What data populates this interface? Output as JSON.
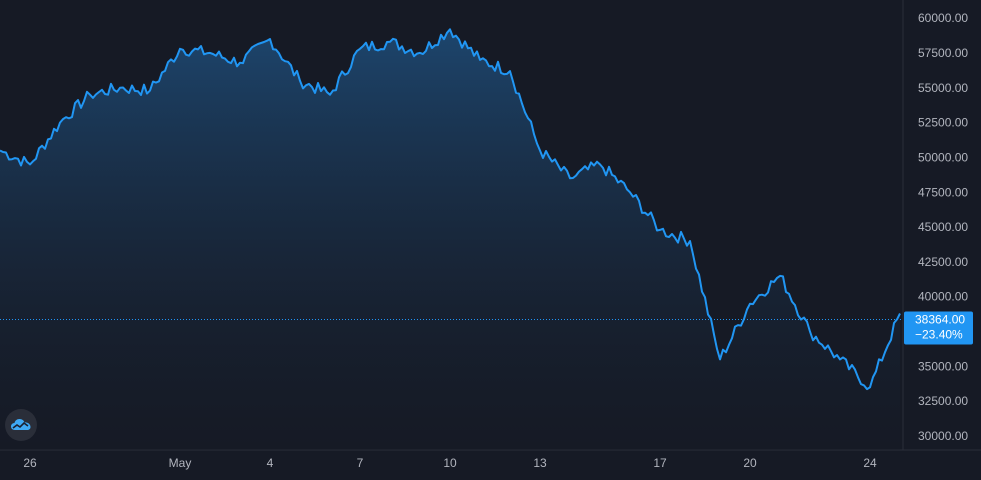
{
  "chart_data": {
    "type": "area",
    "title": "",
    "xlabel": "",
    "ylabel": "",
    "x_tick_labels": [
      "26",
      "May",
      "4",
      "7",
      "10",
      "13",
      "17",
      "20",
      "24"
    ],
    "y_tick_labels": [
      "60000.00",
      "57500.00",
      "55000.00",
      "52500.00",
      "50000.00",
      "47500.00",
      "45000.00",
      "42500.00",
      "40000.00",
      "37500.00",
      "35000.00",
      "32500.00",
      "30000.00"
    ],
    "ylim": [
      29000,
      61300
    ],
    "grid": false,
    "x_axis": "dates, Apr 25 – May 25",
    "series": [
      {
        "name": "",
        "color": "#2196f3",
        "points": [
          [
            "Apr 25",
            50500
          ],
          [
            "Apr 26",
            49500
          ],
          [
            "Apr 27",
            52500
          ],
          [
            "Apr 28",
            54500
          ],
          [
            "Apr 29",
            55000
          ],
          [
            "Apr 30",
            54800
          ],
          [
            "May 1",
            57800
          ],
          [
            "May 2",
            57500
          ],
          [
            "May 3",
            56800
          ],
          [
            "May 4",
            58500
          ],
          [
            "May 5",
            55500
          ],
          [
            "May 6",
            54500
          ],
          [
            "May 7",
            57800
          ],
          [
            "May 8",
            58300
          ],
          [
            "May 9",
            57500
          ],
          [
            "May 10",
            59200
          ],
          [
            "May 11",
            57000
          ],
          [
            "May 12",
            56200
          ],
          [
            "May 13",
            50500
          ],
          [
            "May 14",
            48500
          ],
          [
            "May 15",
            49500
          ],
          [
            "May 16",
            47500
          ],
          [
            "May 17",
            44800
          ],
          [
            "May 18",
            44000
          ],
          [
            "May 19",
            35500
          ],
          [
            "May 20",
            39500
          ],
          [
            "May 21",
            41500
          ],
          [
            "May 22",
            37500
          ],
          [
            "May 23",
            35500
          ],
          [
            "May 24",
            33500
          ],
          [
            "May 25",
            38800
          ]
        ]
      }
    ],
    "last_price": {
      "value": 38364,
      "value_label": "38364.00",
      "change_label": "−23.40%",
      "color": "#2196f3"
    }
  },
  "logo": {
    "icon": "cloud-logo-icon"
  }
}
